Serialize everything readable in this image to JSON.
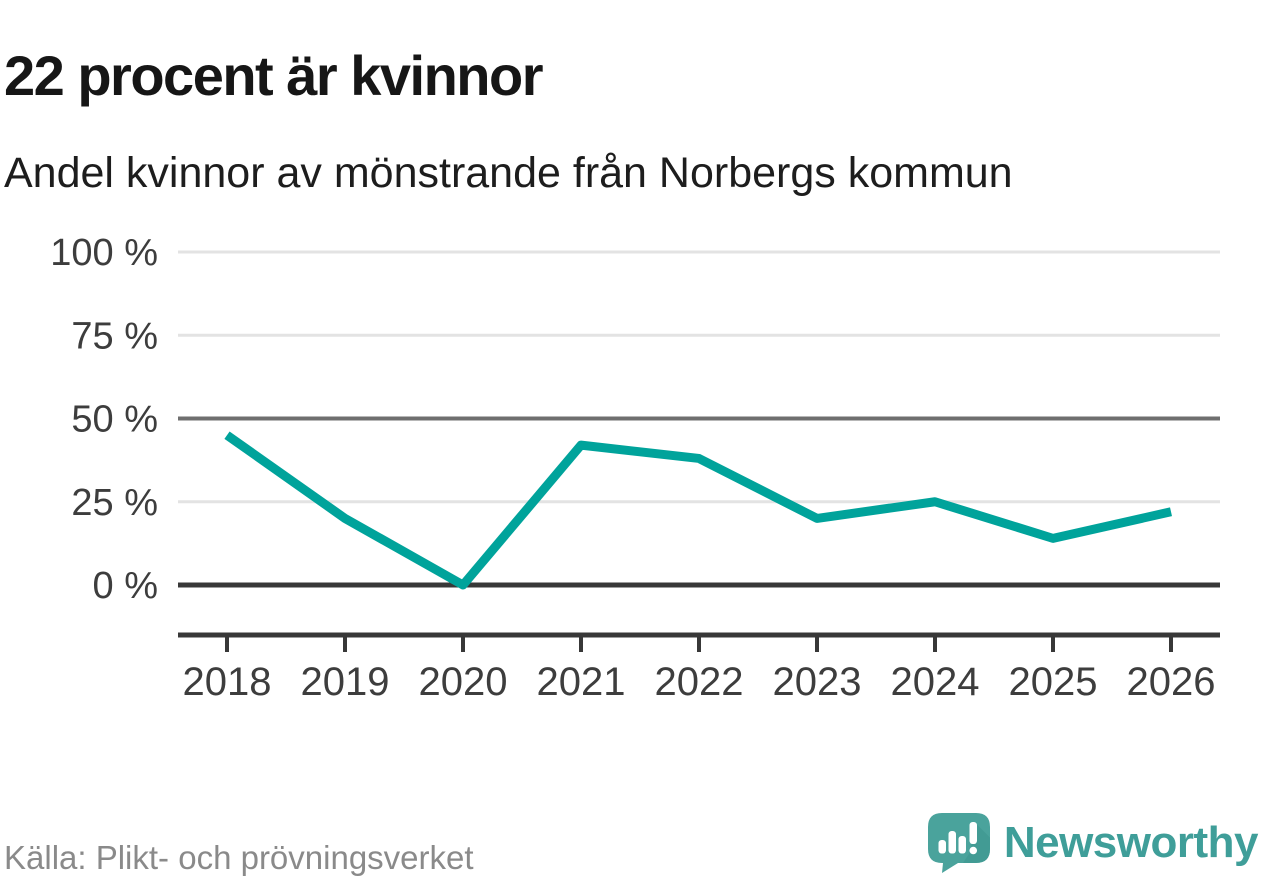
{
  "header": {
    "title": "22 procent är kvinnor",
    "subtitle": "Andel kvinnor av mönstrande från Norbergs kommun"
  },
  "chart_data": {
    "type": "line",
    "title": "22 procent är kvinnor",
    "subtitle": "Andel kvinnor av mönstrande från Norbergs kommun",
    "categories": [
      "2018",
      "2019",
      "2020",
      "2021",
      "2022",
      "2023",
      "2024",
      "2025",
      "2026"
    ],
    "series": [
      {
        "name": "Andel kvinnor av mönstrande",
        "values": [
          45,
          20,
          0,
          42,
          38,
          20,
          25,
          14,
          22
        ]
      }
    ],
    "unit": "%",
    "xlabel": "",
    "ylabel": "",
    "ylim": [
      0,
      100
    ],
    "yticks": [
      {
        "value": 0,
        "label": "0 %"
      },
      {
        "value": 25,
        "label": "25 %"
      },
      {
        "value": 50,
        "label": "50 %"
      },
      {
        "value": 75,
        "label": "75 %"
      },
      {
        "value": 100,
        "label": "100 %"
      }
    ],
    "grid": "horizontal",
    "legend_position": "none",
    "line_color": "#00a39b"
  },
  "footer": {
    "source": "Källa: Plikt- och prövningsverket",
    "logo_text": "Newsworthy"
  },
  "colors": {
    "accent": "#00a39b",
    "logo_fill": "#4aa39c",
    "logo_shadow": "#3c958e",
    "logo_text": "#3f9e99",
    "axis": "#383838",
    "grid_light": "#e3e3e3",
    "grid_mid": "#6f6f6f",
    "tick_text": "#3d3d3d",
    "title_text": "#161616",
    "muted_text": "#8a8a8a"
  }
}
